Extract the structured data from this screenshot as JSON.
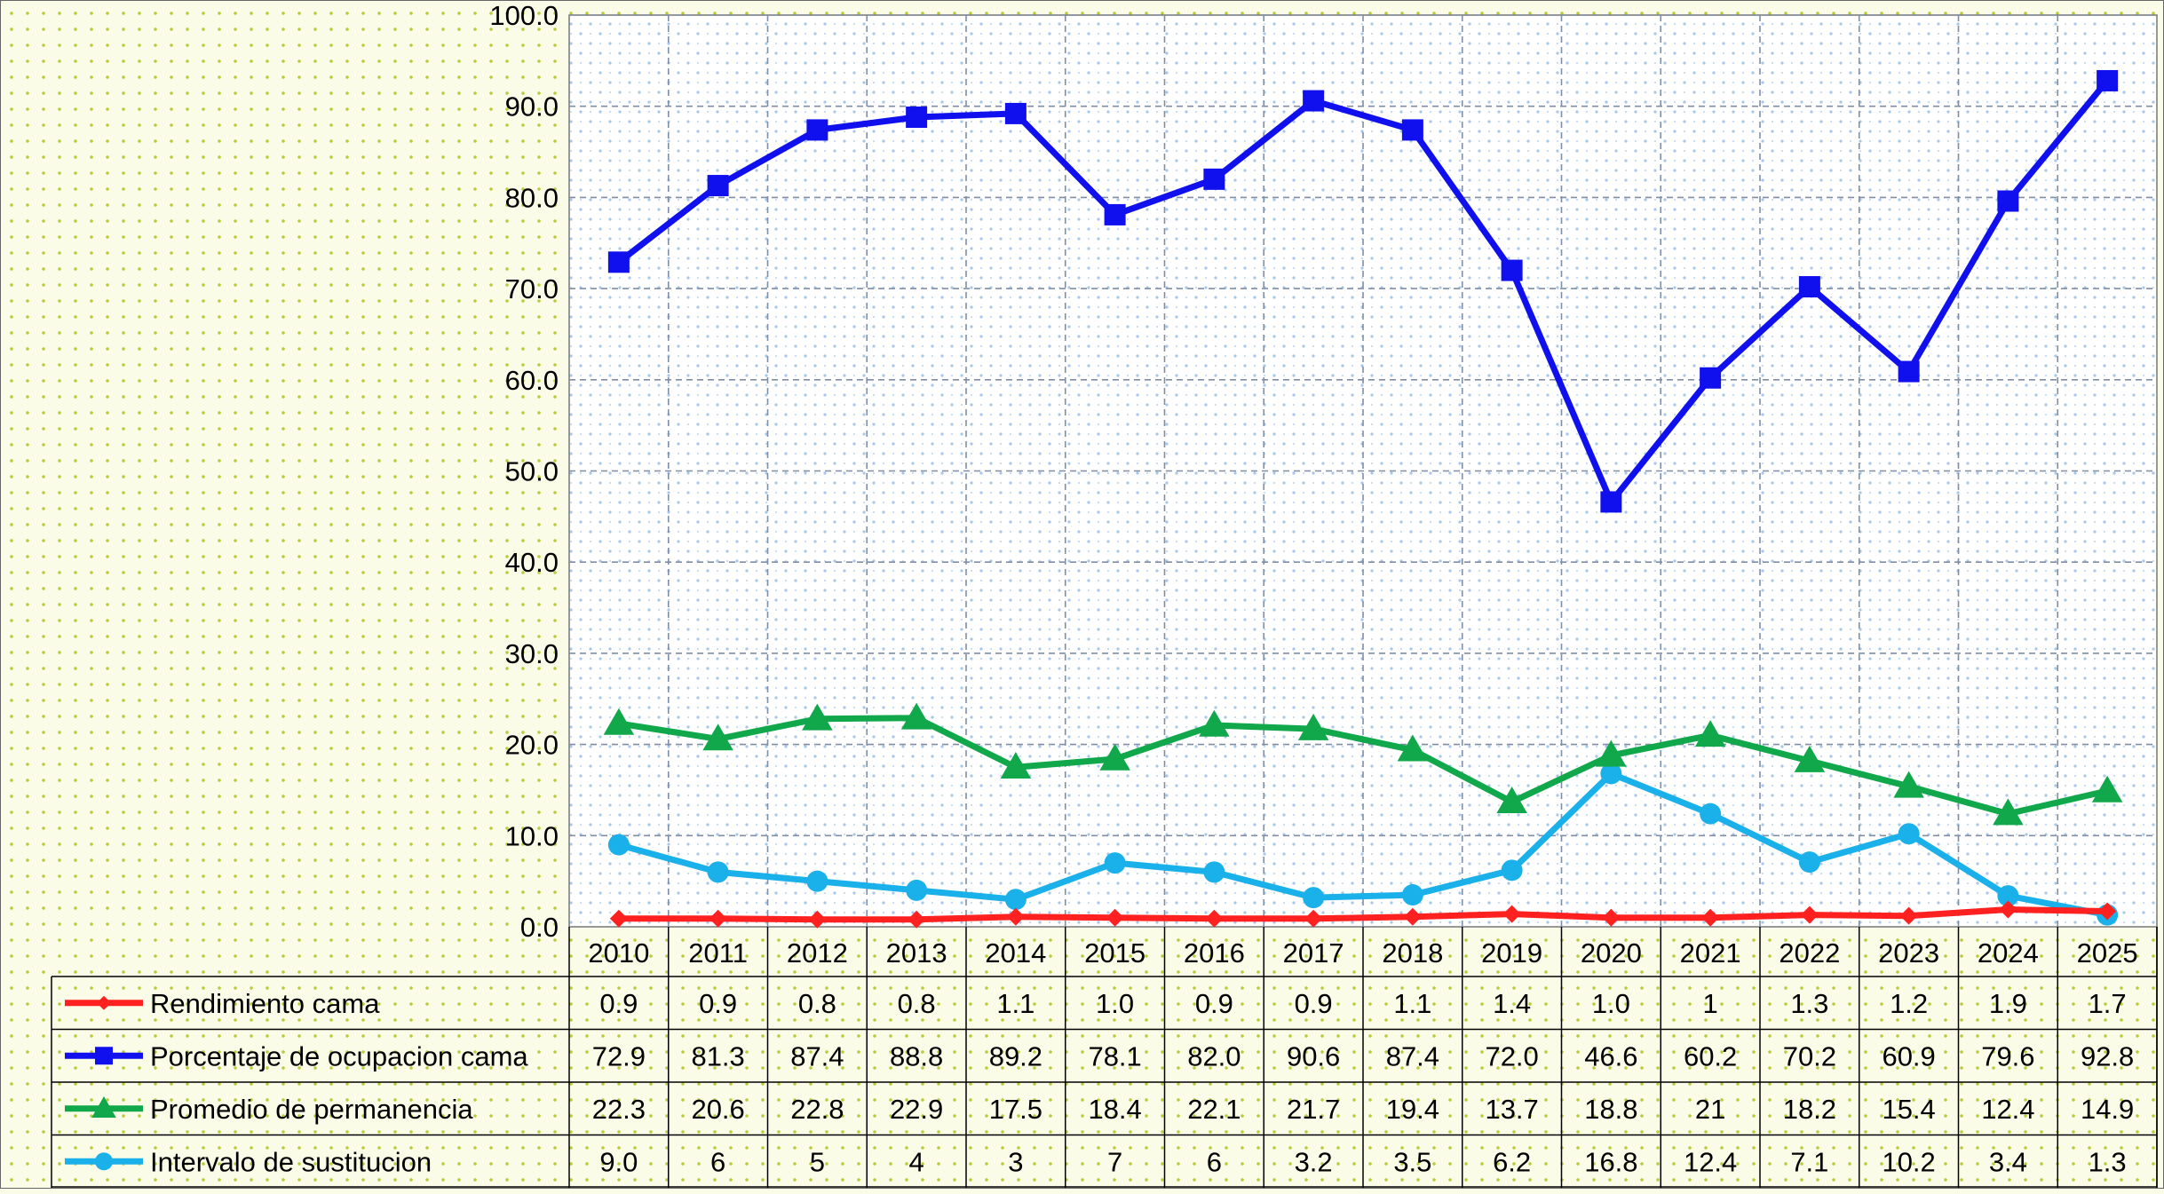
{
  "chart_data": {
    "type": "line",
    "categories": [
      "2010",
      "2011",
      "2012",
      "2013",
      "2014",
      "2015",
      "2016",
      "2017",
      "2018",
      "2019",
      "2020",
      "2021",
      "2022",
      "2023",
      "2024",
      "2025"
    ],
    "ylim": [
      0,
      100
    ],
    "yticks": [
      "0.0",
      "10.0",
      "20.0",
      "30.0",
      "40.0",
      "50.0",
      "60.0",
      "70.0",
      "80.0",
      "90.0",
      "100.0"
    ],
    "grid": true,
    "data_table": true,
    "series": [
      {
        "name": "Rendimiento cama",
        "color": "#ff2020",
        "marker": "diamond",
        "values": [
          0.9,
          0.9,
          0.8,
          0.8,
          1.1,
          1.0,
          0.9,
          0.9,
          1.1,
          1.4,
          1.0,
          1,
          1.3,
          1.2,
          1.9,
          1.7
        ],
        "labels": [
          "0.9",
          "0.9",
          "0.8",
          "0.8",
          "1.1",
          "1.0",
          "0.9",
          "0.9",
          "1.1",
          "1.4",
          "1.0",
          "1",
          "1.3",
          "1.2",
          "1.9",
          "1.7"
        ]
      },
      {
        "name": "Porcentaje de ocupacion cama",
        "color": "#1010ee",
        "marker": "square",
        "values": [
          72.9,
          81.3,
          87.4,
          88.8,
          89.2,
          78.1,
          82.0,
          90.6,
          87.4,
          72.0,
          46.6,
          60.2,
          70.2,
          60.9,
          79.6,
          92.8
        ],
        "labels": [
          "72.9",
          "81.3",
          "87.4",
          "88.8",
          "89.2",
          "78.1",
          "82.0",
          "90.6",
          "87.4",
          "72.0",
          "46.6",
          "60.2",
          "70.2",
          "60.9",
          "79.6",
          "92.8"
        ]
      },
      {
        "name": "Promedio de permanencia",
        "color": "#10a84a",
        "marker": "triangle",
        "values": [
          22.3,
          20.6,
          22.8,
          22.9,
          17.5,
          18.4,
          22.1,
          21.7,
          19.4,
          13.7,
          18.8,
          21,
          18.2,
          15.4,
          12.4,
          14.9
        ],
        "labels": [
          "22.3",
          "20.6",
          "22.8",
          "22.9",
          "17.5",
          "18.4",
          "22.1",
          "21.7",
          "19.4",
          "13.7",
          "18.8",
          "21",
          "18.2",
          "15.4",
          "12.4",
          "14.9"
        ]
      },
      {
        "name": "Intervalo de sustitucion",
        "color": "#1ab0ea",
        "marker": "circle",
        "values": [
          9.0,
          6,
          5,
          4,
          3,
          7,
          6,
          3.2,
          3.5,
          6.2,
          16.8,
          12.4,
          7.1,
          10.2,
          3.4,
          1.3
        ],
        "labels": [
          "9.0",
          "6",
          "5",
          "4",
          "3",
          "7",
          "6",
          "3.2",
          "3.5",
          "6.2",
          "16.8",
          "12.4",
          "7.1",
          "10.2",
          "3.4",
          "1.3"
        ]
      }
    ]
  }
}
